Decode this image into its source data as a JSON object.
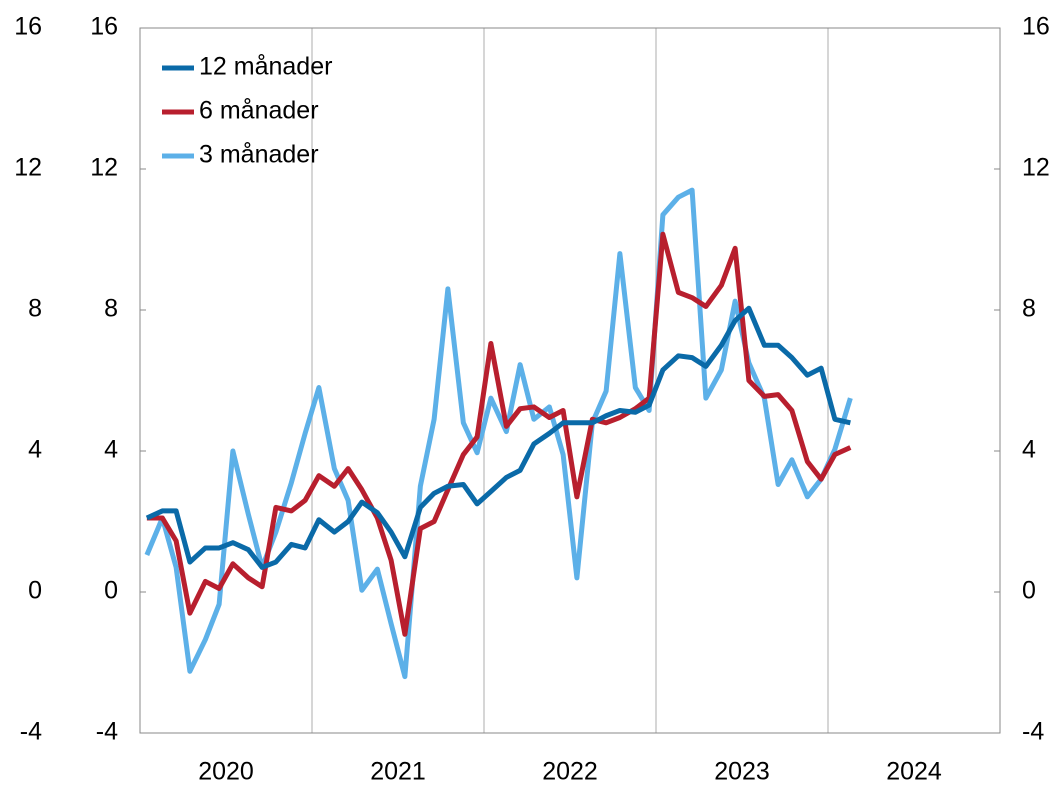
{
  "chart_data": {
    "type": "line",
    "x": [
      2020.04,
      2020.13,
      2020.21,
      2020.29,
      2020.38,
      2020.46,
      2020.54,
      2020.63,
      2020.71,
      2020.79,
      2020.88,
      2020.96,
      2021.04,
      2021.13,
      2021.21,
      2021.29,
      2021.38,
      2021.46,
      2021.54,
      2021.63,
      2021.71,
      2021.79,
      2021.88,
      2021.96,
      2022.04,
      2022.13,
      2022.21,
      2022.29,
      2022.38,
      2022.46,
      2022.54,
      2022.63,
      2022.71,
      2022.79,
      2022.88,
      2022.96,
      2023.04,
      2023.13,
      2023.21,
      2023.29,
      2023.38,
      2023.46,
      2023.54,
      2023.63,
      2023.71,
      2023.79,
      2023.88,
      2023.96,
      2024.04,
      2024.13
    ],
    "series": [
      {
        "name": "12 månader",
        "color": "#0a6aa8",
        "values": [
          2.1,
          2.3,
          2.3,
          0.85,
          1.25,
          1.25,
          1.4,
          1.2,
          0.7,
          0.85,
          1.35,
          1.25,
          2.05,
          1.7,
          2.0,
          2.55,
          2.25,
          1.7,
          1.0,
          2.4,
          2.8,
          3.0,
          3.05,
          2.5,
          2.85,
          3.25,
          3.45,
          4.2,
          4.5,
          4.8,
          4.8,
          4.8,
          5.0,
          5.15,
          5.1,
          5.3,
          6.3,
          6.7,
          6.65,
          6.4,
          7.0,
          7.7,
          8.05,
          7.0,
          7.0,
          6.65,
          6.15,
          6.35,
          4.9,
          4.8
        ]
      },
      {
        "name": "6 månader",
        "color": "#b81f2e",
        "values": [
          2.1,
          2.1,
          1.45,
          -0.6,
          0.3,
          0.1,
          0.8,
          0.4,
          0.15,
          2.4,
          2.3,
          2.6,
          3.3,
          3.0,
          3.5,
          2.9,
          2.1,
          0.9,
          -1.2,
          1.8,
          2.0,
          2.9,
          3.9,
          4.4,
          7.05,
          4.7,
          5.2,
          5.25,
          4.95,
          5.15,
          2.7,
          4.9,
          4.8,
          4.95,
          5.2,
          5.5,
          10.15,
          8.5,
          8.35,
          8.1,
          8.7,
          9.75,
          6.0,
          5.55,
          5.6,
          5.15,
          3.7,
          3.2,
          3.9,
          4.1
        ]
      },
      {
        "name": "3 månader",
        "color": "#5cb0e8",
        "values": [
          1.05,
          2.1,
          0.7,
          -2.25,
          -1.35,
          -0.35,
          4.0,
          2.2,
          0.7,
          1.7,
          3.1,
          4.5,
          5.8,
          3.5,
          2.6,
          0.05,
          0.65,
          -0.9,
          -2.4,
          3.0,
          4.9,
          8.6,
          4.8,
          3.95,
          5.5,
          4.55,
          6.45,
          4.9,
          5.25,
          3.9,
          0.4,
          4.8,
          5.7,
          9.6,
          5.8,
          5.15,
          10.7,
          11.2,
          11.4,
          5.5,
          6.3,
          8.25,
          6.5,
          5.5,
          3.05,
          3.75,
          2.7,
          3.2,
          4.05,
          5.5
        ]
      }
    ],
    "xlim": [
      2020,
      2025
    ],
    "xticks": [
      {
        "value": 2020.5,
        "label": "2020"
      },
      {
        "value": 2021.5,
        "label": "2021"
      },
      {
        "value": 2022.5,
        "label": "2022"
      },
      {
        "value": 2023.5,
        "label": "2023"
      },
      {
        "value": 2024.5,
        "label": "2024"
      }
    ],
    "xgrid": [
      2021,
      2022,
      2023,
      2024
    ],
    "ylim": [
      -4,
      16
    ],
    "yticks": [
      -4,
      0,
      4,
      8,
      12,
      16
    ],
    "y2lim": [
      -4,
      16
    ],
    "y2ticks": [
      -4,
      0,
      4,
      8,
      12,
      16
    ],
    "legend": "upper left"
  }
}
